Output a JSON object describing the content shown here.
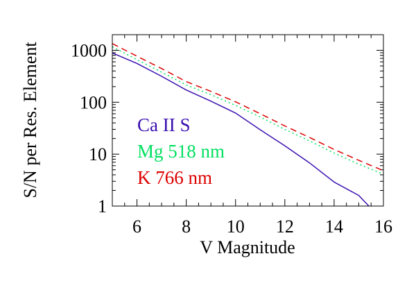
{
  "chart_data": {
    "type": "line",
    "title": "",
    "xlabel": "V Magnitude",
    "ylabel": "S/N per Res. Element",
    "xlim": [
      5,
      16
    ],
    "ylim": [
      1,
      2000
    ],
    "yscale": "log",
    "grid": false,
    "legend_placement": "center-left",
    "xticks": [
      6,
      8,
      10,
      12,
      14,
      16
    ],
    "yticks": [
      1,
      10,
      100,
      1000
    ],
    "ytick_labels": [
      "1",
      "10",
      "100",
      "1000"
    ],
    "series": [
      {
        "name": "Ca II S",
        "color": "#3a10b0",
        "style": "solid",
        "x": [
          5,
          6,
          7,
          8,
          9,
          10,
          11,
          12,
          13,
          14,
          15,
          15.41
        ],
        "y": [
          890,
          560,
          316,
          172,
          105,
          62,
          29.5,
          14.5,
          6.8,
          2.9,
          1.6,
          1.0
        ]
      },
      {
        "name": "Mg 518 nm",
        "color": "#00e060",
        "style": "dotted",
        "x": [
          5,
          6,
          7,
          8,
          9,
          10,
          11,
          12,
          13,
          14,
          15,
          16
        ],
        "y": [
          1170,
          660,
          380,
          215,
          140,
          87,
          52,
          30,
          18,
          10.5,
          6.4,
          4.1
        ]
      },
      {
        "name": "K 766 nm",
        "color": "#dd0000",
        "style": "dashed",
        "x": [
          5,
          6,
          7,
          8,
          9,
          10,
          11,
          12,
          13,
          14,
          15,
          16
        ],
        "y": [
          1350,
          770,
          445,
          250,
          162,
          102,
          60,
          35,
          21,
          12.3,
          7.6,
          4.8
        ]
      }
    ]
  }
}
